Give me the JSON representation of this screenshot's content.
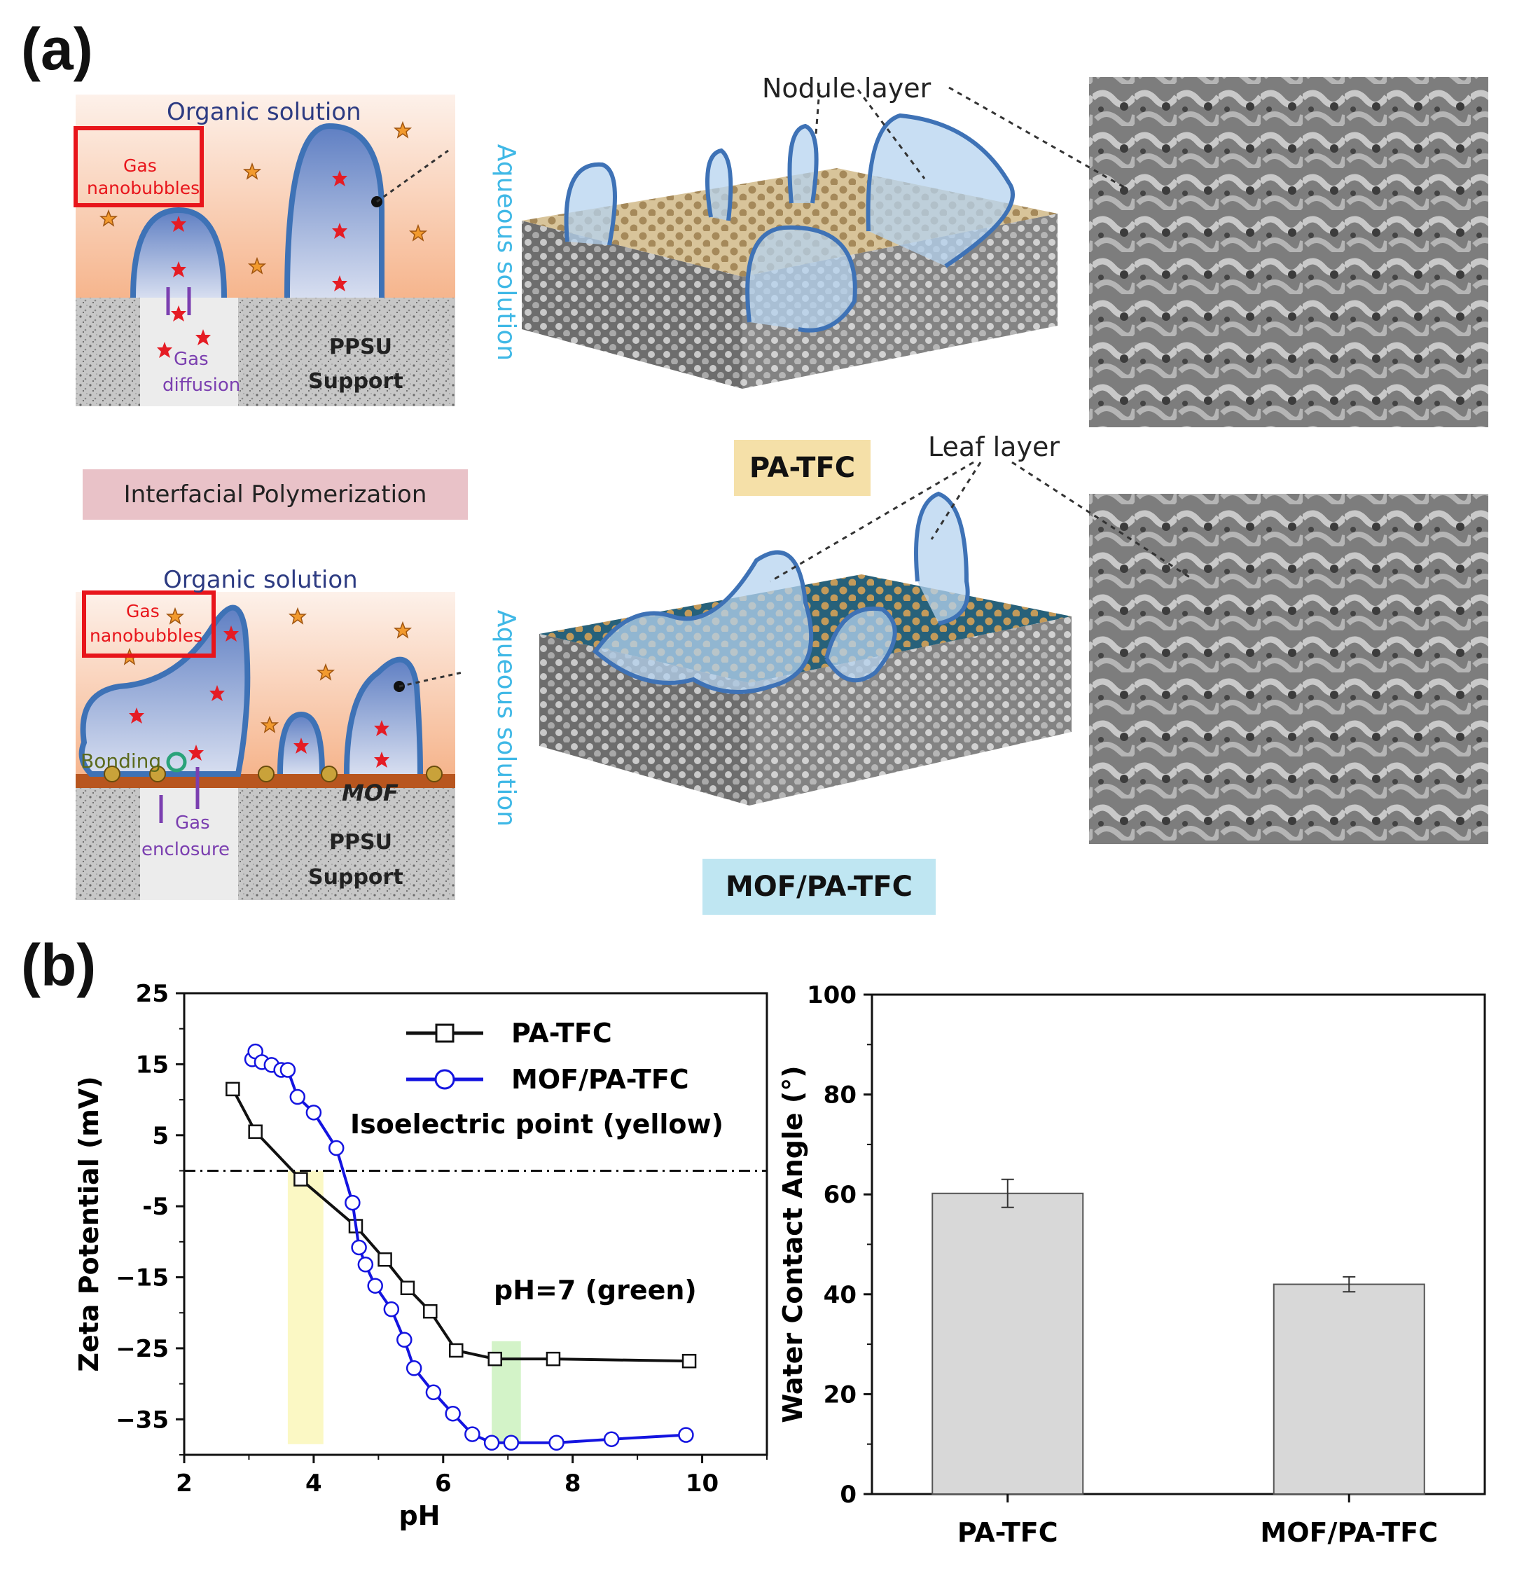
{
  "panel_labels": {
    "a": "(a)",
    "b": "(b)"
  },
  "schematic": {
    "top": {
      "organic_solution": "Organic solution",
      "gas_nanobubbles": [
        "Gas",
        "nanobubbles"
      ],
      "aqueous_solution": "Aqueous solution",
      "gas_diffusion": [
        "Gas",
        "diffusion"
      ],
      "support": [
        "PPSU",
        "Support"
      ]
    },
    "interfacial_polymerization": "Interfacial Polymerization",
    "bottom": {
      "organic_solution": "Organic solution",
      "gas_nanobubbles": [
        "Gas",
        "nanobubbles"
      ],
      "aqueous_solution": "Aqueous solution",
      "bonding": "Bonding",
      "mof": "MOF",
      "gas_enclosure": [
        "Gas",
        "enclosure"
      ],
      "support": [
        "PPSU",
        "Support"
      ]
    },
    "nodule_layer": "Nodule layer",
    "leaf_layer": "Leaf layer",
    "pa_tfc_tag": "PA-TFC",
    "mof_pa_tfc_tag": "MOF/PA-TFC",
    "colors": {
      "pa_tfc_tag": "#f5e0a8",
      "mof_pa_tfc_tag": "#bfe6f2",
      "red_box": "#e8151b",
      "aqueous_text": "#3fb8e6"
    }
  },
  "chart_data": [
    {
      "type": "line",
      "xlabel": "pH",
      "ylabel": "Zeta Potential (mV)",
      "xlim": [
        2,
        11
      ],
      "ylim": [
        -40,
        25
      ],
      "xticks": [
        "2",
        "4",
        "6",
        "8",
        "10"
      ],
      "yticks": [
        "25",
        "15",
        "5",
        "-5",
        "−15",
        "−25",
        "−35"
      ],
      "legend_position": "top-right",
      "annotations": {
        "isoelectric": "Isoelectric point (yellow)",
        "ph7": "pH=7 (green)",
        "isoelectric_band": [
          3.6,
          4.15
        ],
        "ph7_band": [
          6.75,
          7.2
        ],
        "zero_line": 0
      },
      "series": [
        {
          "name": "PA-TFC",
          "marker": "square",
          "color": "#111111",
          "x": [
            2.75,
            3.1,
            3.8,
            4.65,
            5.1,
            5.45,
            5.8,
            6.2,
            6.8,
            7.7,
            9.8
          ],
          "y": [
            11.5,
            5.5,
            -1.2,
            -7.8,
            -12.5,
            -16.5,
            -19.8,
            -25.3,
            -26.5,
            -26.5,
            -26.8
          ]
        },
        {
          "name": "MOF/PA-TFC",
          "marker": "circle",
          "color": "#1414e0",
          "x": [
            3.05,
            3.1,
            3.2,
            3.35,
            3.5,
            3.6,
            3.75,
            4.0,
            4.35,
            4.6,
            4.7,
            4.8,
            4.95,
            5.2,
            5.4,
            5.55,
            5.85,
            6.15,
            6.45,
            6.75,
            7.05,
            7.75,
            8.6,
            9.75
          ],
          "y": [
            15.7,
            16.8,
            15.3,
            14.9,
            14.2,
            14.2,
            10.4,
            8.2,
            3.2,
            -4.5,
            -10.8,
            -13.2,
            -16.2,
            -19.5,
            -23.8,
            -27.8,
            -31.2,
            -34.2,
            -37.1,
            -38.3,
            -38.3,
            -38.3,
            -37.8,
            -37.2
          ]
        }
      ]
    },
    {
      "type": "bar",
      "ylabel": "Water Contact Angle (°)",
      "categories": [
        "PA-TFC",
        "MOF/PA-TFC"
      ],
      "values": [
        60.2,
        42.0
      ],
      "errors": [
        2.8,
        1.5
      ],
      "ylim": [
        0,
        100
      ],
      "yticks": [
        "0",
        "20",
        "40",
        "60",
        "80",
        "100"
      ],
      "bar_color": "#d8d8d8"
    }
  ]
}
